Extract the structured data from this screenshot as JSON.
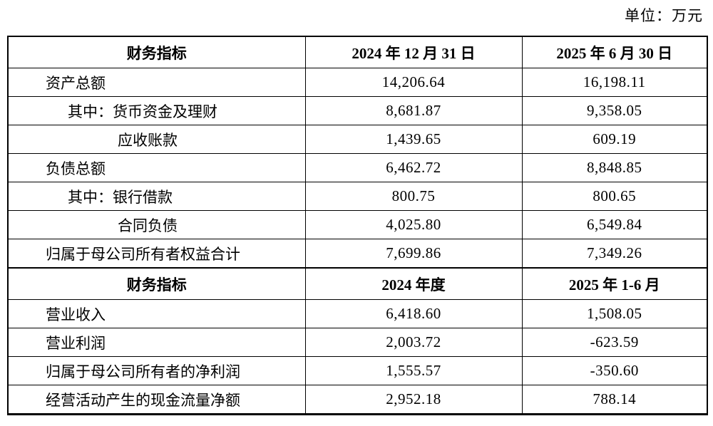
{
  "unit_label": "单位：万元",
  "table": {
    "sections": [
      {
        "header": [
          "财务指标",
          "2024 年 12 月 31 日",
          "2025 年 6 月 30 日"
        ],
        "rows": [
          {
            "label": "资产总额",
            "values": [
              "14,206.64",
              "16,198.11"
            ]
          },
          {
            "label": "其中：货币资金及理财",
            "values": [
              "8,681.87",
              "9,358.05"
            ]
          },
          {
            "label": "应收账款",
            "values": [
              "1,439.65",
              "609.19"
            ]
          },
          {
            "label": "负债总额",
            "values": [
              "6,462.72",
              "8,848.85"
            ]
          },
          {
            "label": "其中：银行借款",
            "values": [
              "800.75",
              "800.65"
            ]
          },
          {
            "label": "合同负债",
            "values": [
              "4,025.80",
              "6,549.84"
            ]
          },
          {
            "label": "归属于母公司所有者权益合计",
            "values": [
              "7,699.86",
              "7,349.26"
            ]
          }
        ]
      },
      {
        "header": [
          "财务指标",
          "2024 年度",
          "2025 年 1-6 月"
        ],
        "rows": [
          {
            "label": "营业收入",
            "values": [
              "6,418.60",
              "1,508.05"
            ]
          },
          {
            "label": "营业利润",
            "values": [
              "2,003.72",
              "-623.59"
            ]
          },
          {
            "label": "归属于母公司所有者的净利润",
            "values": [
              "1,555.57",
              "-350.60"
            ]
          },
          {
            "label": "经营活动产生的现金流量净额",
            "values": [
              "2,952.18",
              "788.14"
            ]
          }
        ]
      }
    ]
  }
}
